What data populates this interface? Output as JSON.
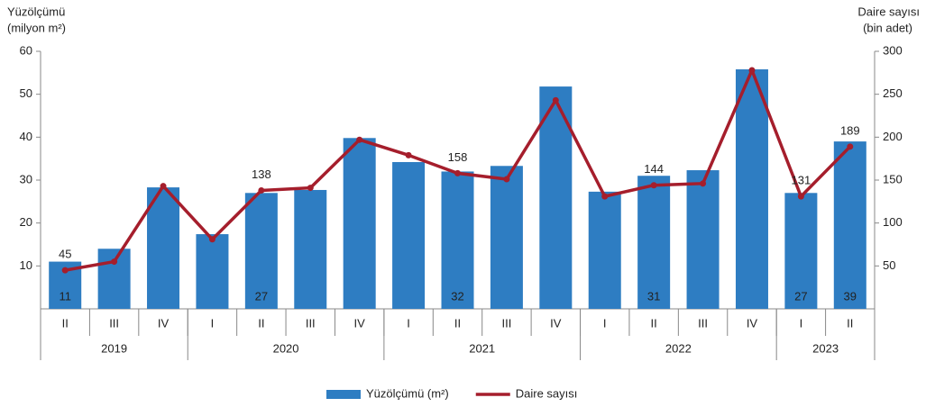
{
  "chart_data": {
    "type": "bar-line",
    "y_title": [
      "Yüzölçümü",
      "(milyon m²)"
    ],
    "y2_title": [
      "Daire sayısı",
      "(bin adet)"
    ],
    "categories": [
      "II",
      "III",
      "IV",
      "I",
      "II",
      "III",
      "IV",
      "I",
      "II",
      "III",
      "IV",
      "I",
      "II",
      "III",
      "IV",
      "I",
      "II"
    ],
    "year_groups": [
      {
        "name": "2019",
        "count": 3
      },
      {
        "name": "2020",
        "count": 4
      },
      {
        "name": "2021",
        "count": 4
      },
      {
        "name": "2022",
        "count": 4
      },
      {
        "name": "2023",
        "count": 2
      }
    ],
    "series": [
      {
        "name": "Yüzölçümü (m²)",
        "type": "bar",
        "color": "#2e7dc2",
        "values": [
          11,
          14,
          28.3,
          17.4,
          27,
          27.7,
          39.8,
          34.2,
          32,
          33.3,
          51.8,
          27.3,
          31,
          32.3,
          55.8,
          27,
          39
        ],
        "value_labels": [
          "11",
          null,
          null,
          null,
          "27",
          null,
          null,
          null,
          "32",
          null,
          null,
          null,
          "31",
          null,
          null,
          "27",
          "39"
        ]
      },
      {
        "name": "Daire sayısı",
        "type": "line",
        "axis": "y2",
        "color": "#a51e2c",
        "values": [
          45,
          55,
          143,
          81,
          138,
          141,
          197,
          179,
          158,
          151,
          243,
          131,
          144,
          146,
          278,
          131,
          189
        ],
        "value_labels": [
          "45",
          null,
          null,
          null,
          "138",
          null,
          null,
          null,
          "158",
          null,
          null,
          null,
          "144",
          null,
          null,
          "131",
          "189"
        ]
      }
    ],
    "ylim": [
      0,
      60
    ],
    "yticks": [
      10,
      20,
      30,
      40,
      50,
      60
    ],
    "y2lim": [
      0,
      300
    ],
    "y2ticks": [
      50,
      100,
      150,
      200,
      250,
      300
    ]
  }
}
